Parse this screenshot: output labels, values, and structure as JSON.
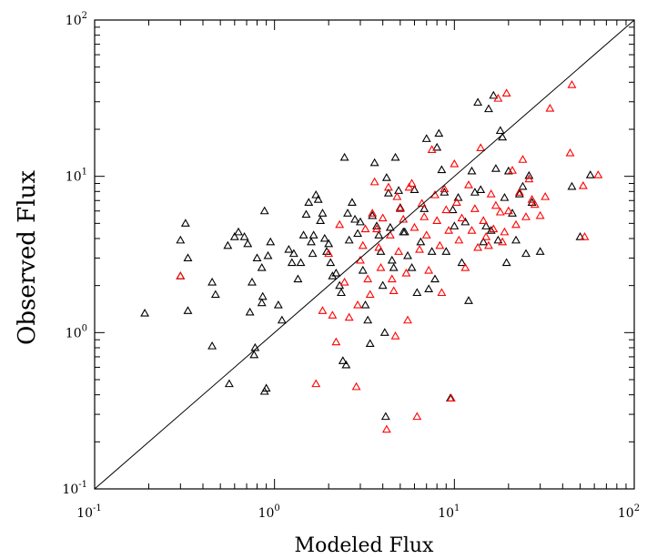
{
  "chart_data": {
    "type": "scatter",
    "title": "",
    "xlabel": "Modeled Flux",
    "ylabel": "Observed Flux",
    "xscale": "log",
    "yscale": "log",
    "xlim": [
      0.1,
      100
    ],
    "ylim": [
      0.1,
      100
    ],
    "x_ticks": [
      {
        "base": "10",
        "exp": "-1",
        "value": 0.1
      },
      {
        "base": "10",
        "exp": "0",
        "value": 1
      },
      {
        "base": "10",
        "exp": "1",
        "value": 10
      },
      {
        "base": "10",
        "exp": "2",
        "value": 100
      }
    ],
    "y_ticks": [
      {
        "base": "10",
        "exp": "-1",
        "value": 0.1
      },
      {
        "base": "10",
        "exp": "0",
        "value": 1
      },
      {
        "base": "10",
        "exp": "1",
        "value": 10
      },
      {
        "base": "10",
        "exp": "2",
        "value": 100
      }
    ],
    "reference_line": {
      "type": "1:1",
      "from": [
        0.1,
        0.1
      ],
      "to": [
        100,
        100
      ]
    },
    "grid": false,
    "marker": "open-triangle",
    "series": [
      {
        "color": "#000000",
        "points": [
          [
            0.19,
            1.33
          ],
          [
            0.3,
            3.9
          ],
          [
            0.32,
            5.0
          ],
          [
            0.33,
            3.0
          ],
          [
            0.3,
            2.3
          ],
          [
            0.33,
            1.38
          ],
          [
            0.45,
            2.1
          ],
          [
            0.47,
            1.75
          ],
          [
            0.45,
            0.82
          ],
          [
            0.56,
            0.47
          ],
          [
            0.55,
            3.6
          ],
          [
            0.6,
            4.1
          ],
          [
            0.63,
            4.4
          ],
          [
            0.68,
            4.1
          ],
          [
            0.71,
            3.7
          ],
          [
            0.75,
            2.1
          ],
          [
            0.73,
            1.35
          ],
          [
            0.78,
            0.8
          ],
          [
            0.77,
            0.72
          ],
          [
            0.8,
            3.0
          ],
          [
            0.85,
            2.6
          ],
          [
            0.85,
            1.55
          ],
          [
            0.86,
            1.7
          ],
          [
            0.88,
            0.42
          ],
          [
            0.9,
            0.44
          ],
          [
            0.88,
            6.0
          ],
          [
            0.92,
            3.1
          ],
          [
            0.95,
            3.8
          ],
          [
            1.05,
            1.5
          ],
          [
            1.1,
            1.2
          ],
          [
            1.2,
            3.4
          ],
          [
            1.25,
            2.8
          ],
          [
            1.28,
            3.2
          ],
          [
            1.35,
            2.2
          ],
          [
            1.4,
            2.8
          ],
          [
            1.45,
            4.2
          ],
          [
            1.5,
            5.7
          ],
          [
            1.55,
            6.8
          ],
          [
            1.6,
            3.8
          ],
          [
            1.63,
            3.2
          ],
          [
            1.65,
            4.2
          ],
          [
            1.7,
            7.6
          ],
          [
            1.75,
            7.1
          ],
          [
            1.8,
            5.2
          ],
          [
            1.85,
            5.8
          ],
          [
            1.9,
            4.0
          ],
          [
            1.95,
            3.3
          ],
          [
            2.0,
            3.7
          ],
          [
            2.05,
            2.8
          ],
          [
            2.1,
            2.3
          ],
          [
            2.2,
            2.4
          ],
          [
            2.3,
            2.0
          ],
          [
            2.35,
            1.8
          ],
          [
            2.4,
            0.66
          ],
          [
            2.5,
            0.62
          ],
          [
            2.45,
            13.2
          ],
          [
            2.55,
            5.8
          ],
          [
            2.6,
            3.9
          ],
          [
            2.7,
            6.8
          ],
          [
            2.8,
            5.3
          ],
          [
            2.9,
            4.3
          ],
          [
            3.0,
            5.1
          ],
          [
            3.1,
            2.5
          ],
          [
            3.2,
            1.5
          ],
          [
            3.3,
            1.2
          ],
          [
            3.4,
            0.85
          ],
          [
            3.5,
            5.6
          ],
          [
            3.6,
            12.2
          ],
          [
            3.7,
            4.8
          ],
          [
            3.8,
            4.2
          ],
          [
            3.9,
            3.3
          ],
          [
            4.0,
            2.0
          ],
          [
            4.1,
            1.0
          ],
          [
            4.15,
            0.29
          ],
          [
            4.2,
            9.8
          ],
          [
            4.3,
            7.8
          ],
          [
            4.4,
            4.7
          ],
          [
            4.5,
            2.9
          ],
          [
            4.6,
            2.6
          ],
          [
            4.7,
            13.2
          ],
          [
            4.9,
            8.1
          ],
          [
            5.0,
            6.3
          ],
          [
            5.2,
            4.4
          ],
          [
            5.3,
            4.4
          ],
          [
            5.5,
            3.1
          ],
          [
            5.8,
            2.6
          ],
          [
            6.0,
            8.2
          ],
          [
            6.2,
            1.8
          ],
          [
            6.5,
            3.8
          ],
          [
            6.8,
            6.2
          ],
          [
            7.0,
            17.4
          ],
          [
            7.2,
            1.9
          ],
          [
            7.5,
            3.3
          ],
          [
            7.8,
            2.2
          ],
          [
            8.0,
            15.3
          ],
          [
            8.2,
            18.8
          ],
          [
            8.5,
            11.0
          ],
          [
            8.8,
            7.9
          ],
          [
            9.0,
            3.3
          ],
          [
            9.5,
            0.38
          ],
          [
            9.8,
            6.1
          ],
          [
            10.0,
            4.8
          ],
          [
            10.5,
            7.3
          ],
          [
            11.0,
            2.8
          ],
          [
            11.5,
            5.1
          ],
          [
            12.0,
            1.6
          ],
          [
            12.5,
            10.8
          ],
          [
            13.0,
            7.9
          ],
          [
            13.5,
            29.7
          ],
          [
            14.0,
            8.2
          ],
          [
            14.5,
            3.8
          ],
          [
            15.0,
            4.8
          ],
          [
            15.5,
            27.0
          ],
          [
            16.0,
            4.5
          ],
          [
            16.5,
            32.9
          ],
          [
            17.0,
            11.2
          ],
          [
            17.5,
            3.9
          ],
          [
            18.0,
            19.6
          ],
          [
            18.5,
            17.8
          ],
          [
            19.0,
            7.3
          ],
          [
            19.5,
            2.8
          ],
          [
            20.0,
            10.8
          ],
          [
            21.0,
            5.8
          ],
          [
            22.0,
            3.9
          ],
          [
            23.0,
            7.7
          ],
          [
            24.0,
            8.6
          ],
          [
            25.0,
            3.2
          ],
          [
            26.0,
            10.1
          ],
          [
            27.0,
            6.8
          ],
          [
            30.0,
            3.3
          ],
          [
            45.0,
            8.6
          ],
          [
            50.0,
            4.1
          ],
          [
            57.0,
            10.2
          ]
        ]
      },
      {
        "color": "#ff0000",
        "points": [
          [
            0.3,
            2.3
          ],
          [
            1.7,
            0.47
          ],
          [
            1.85,
            1.38
          ],
          [
            2.0,
            3.2
          ],
          [
            2.1,
            1.29
          ],
          [
            2.2,
            0.87
          ],
          [
            2.3,
            4.9
          ],
          [
            2.45,
            2.1
          ],
          [
            2.6,
            1.25
          ],
          [
            2.85,
            0.45
          ],
          [
            2.9,
            1.5
          ],
          [
            3.0,
            2.9
          ],
          [
            3.1,
            3.6
          ],
          [
            3.2,
            4.6
          ],
          [
            3.3,
            2.2
          ],
          [
            3.4,
            1.75
          ],
          [
            3.5,
            5.8
          ],
          [
            3.6,
            9.2
          ],
          [
            3.7,
            4.6
          ],
          [
            3.8,
            3.5
          ],
          [
            3.9,
            2.6
          ],
          [
            4.0,
            5.4
          ],
          [
            4.2,
            0.24
          ],
          [
            4.3,
            8.5
          ],
          [
            4.4,
            4.2
          ],
          [
            4.5,
            2.2
          ],
          [
            4.6,
            1.85
          ],
          [
            4.7,
            0.95
          ],
          [
            4.8,
            7.4
          ],
          [
            4.9,
            3.3
          ],
          [
            5.0,
            6.2
          ],
          [
            5.2,
            5.3
          ],
          [
            5.4,
            2.4
          ],
          [
            5.5,
            1.2
          ],
          [
            5.6,
            8.5
          ],
          [
            5.8,
            9.0
          ],
          [
            6.0,
            4.7
          ],
          [
            6.2,
            0.29
          ],
          [
            6.4,
            3.4
          ],
          [
            6.6,
            6.7
          ],
          [
            6.8,
            5.5
          ],
          [
            7.0,
            4.2
          ],
          [
            7.2,
            2.5
          ],
          [
            7.5,
            14.8
          ],
          [
            7.8,
            7.6
          ],
          [
            8.0,
            5.2
          ],
          [
            8.3,
            3.6
          ],
          [
            8.5,
            1.8
          ],
          [
            8.8,
            8.3
          ],
          [
            9.0,
            6.1
          ],
          [
            9.3,
            4.5
          ],
          [
            9.6,
            0.38
          ],
          [
            10.0,
            12.0
          ],
          [
            10.3,
            6.8
          ],
          [
            10.6,
            3.9
          ],
          [
            11.0,
            5.4
          ],
          [
            11.5,
            2.6
          ],
          [
            12.0,
            8.8
          ],
          [
            12.5,
            4.5
          ],
          [
            13.0,
            6.2
          ],
          [
            13.5,
            3.5
          ],
          [
            14.0,
            15.2
          ],
          [
            14.5,
            5.2
          ],
          [
            15.0,
            4.1
          ],
          [
            15.5,
            3.6
          ],
          [
            16.0,
            7.7
          ],
          [
            16.5,
            4.6
          ],
          [
            17.0,
            6.5
          ],
          [
            17.5,
            31.5
          ],
          [
            18.0,
            5.9
          ],
          [
            18.5,
            3.8
          ],
          [
            19.0,
            4.4
          ],
          [
            19.5,
            34.0
          ],
          [
            20.0,
            6.0
          ],
          [
            21.0,
            10.9
          ],
          [
            22.0,
            4.9
          ],
          [
            23.0,
            7.9
          ],
          [
            24.0,
            12.8
          ],
          [
            25.0,
            5.5
          ],
          [
            26.0,
            9.6
          ],
          [
            27.0,
            7.1
          ],
          [
            28.0,
            6.6
          ],
          [
            30.0,
            5.6
          ],
          [
            32.0,
            7.4
          ],
          [
            34.0,
            27.2
          ],
          [
            44.0,
            14.1
          ],
          [
            45.0,
            38.5
          ],
          [
            52.0,
            8.7
          ],
          [
            53.0,
            4.1
          ],
          [
            63.0,
            10.2
          ]
        ]
      }
    ]
  }
}
